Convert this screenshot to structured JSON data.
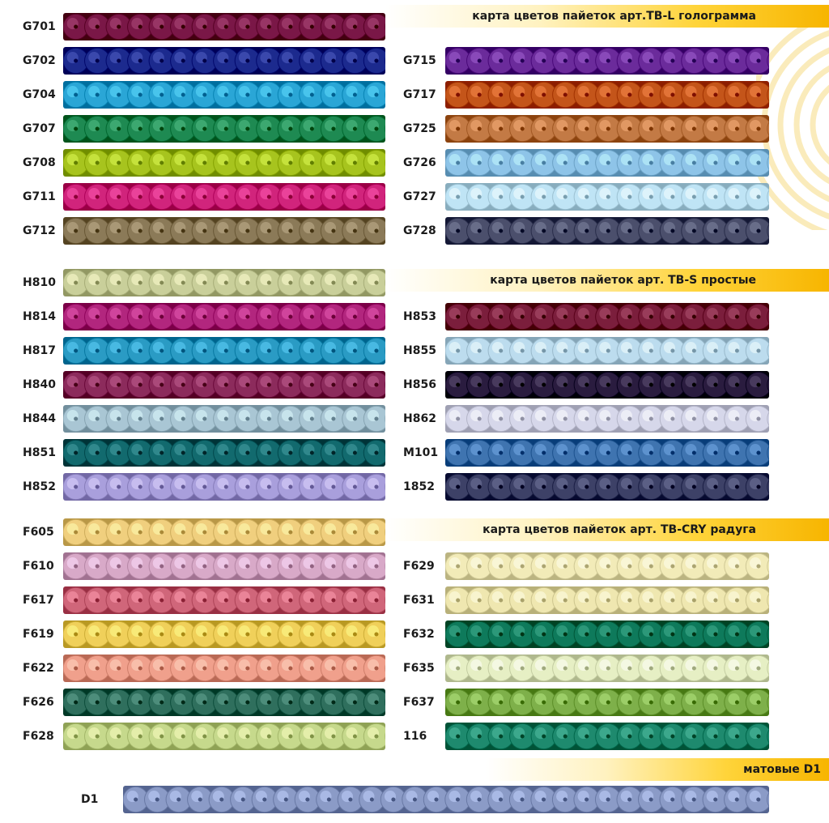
{
  "sections": [
    {
      "title": "карта цветов пайеток арт.TB-L голограмма",
      "left": [
        {
          "code": "G701",
          "color": "#7a1747"
        },
        {
          "code": "G702",
          "color": "#1c2a8e"
        },
        {
          "code": "G704",
          "color": "#2aa6d6"
        },
        {
          "code": "G707",
          "color": "#1e8a52"
        },
        {
          "code": "G708",
          "color": "#a7c41e"
        },
        {
          "code": "G711",
          "color": "#d1247c"
        },
        {
          "code": "G712",
          "color": "#8b7a58"
        }
      ],
      "right": [
        {
          "code": "G715",
          "color": "#6b2b9b"
        },
        {
          "code": "G717",
          "color": "#c4551a"
        },
        {
          "code": "G725",
          "color": "#c37a45"
        },
        {
          "code": "G726",
          "color": "#8ec4e8"
        },
        {
          "code": "G727",
          "color": "#bfe4f5"
        },
        {
          "code": "G728",
          "color": "#4b4f6c"
        }
      ]
    },
    {
      "title": "карта цветов пайеток арт. TB-S простые",
      "left": [
        {
          "code": "H810",
          "color": "#c9cf9a"
        },
        {
          "code": "H814",
          "color": "#b2267e"
        },
        {
          "code": "H817",
          "color": "#2a9bc4"
        },
        {
          "code": "H840",
          "color": "#8c2b5c"
        },
        {
          "code": "H844",
          "color": "#a9c6d4"
        },
        {
          "code": "H851",
          "color": "#126a6e"
        },
        {
          "code": "H852",
          "color": "#a99fdc"
        }
      ],
      "right": [
        {
          "code": "H853",
          "color": "#7b1e3c"
        },
        {
          "code": "H855",
          "color": "#bcdcee"
        },
        {
          "code": "H856",
          "color": "#2a1c3f"
        },
        {
          "code": "H862",
          "color": "#d6d7ea"
        },
        {
          "code": "M101",
          "color": "#3f74b0"
        },
        {
          "code": "1852",
          "color": "#3d4167"
        }
      ]
    },
    {
      "title": "карта цветов пайеток арт. TB-CRY радуга",
      "left": [
        {
          "code": "F605",
          "color": "#f0cf7e"
        },
        {
          "code": "F610",
          "color": "#d8a9c8"
        },
        {
          "code": "F617",
          "color": "#d0667a"
        },
        {
          "code": "F619",
          "color": "#f0d05a"
        },
        {
          "code": "F622",
          "color": "#f0a08c"
        },
        {
          "code": "F626",
          "color": "#2f6f5d"
        },
        {
          "code": "F628",
          "color": "#c6d98c"
        }
      ],
      "right": [
        {
          "code": "F629",
          "color": "#f2ebb8"
        },
        {
          "code": "F631",
          "color": "#efe7b0"
        },
        {
          "code": "F632",
          "color": "#0e7a5b"
        },
        {
          "code": "F635",
          "color": "#e6efc4"
        },
        {
          "code": "F637",
          "color": "#7eb04a"
        },
        {
          "code": "116",
          "color": "#1e8a6e"
        }
      ]
    }
  ],
  "matte": {
    "title": "матовые D1",
    "code": "D1",
    "color": "#8b9bc7"
  }
}
